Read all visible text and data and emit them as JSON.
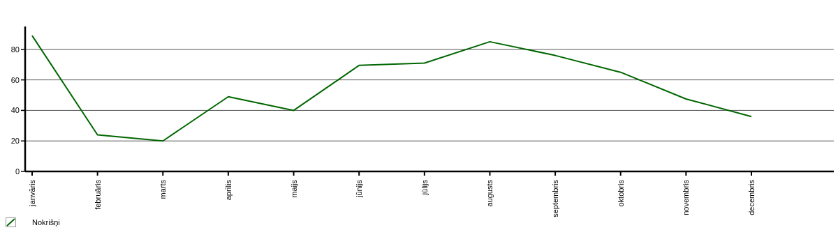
{
  "chart_data": {
    "type": "line",
    "categories": [
      "janvāris",
      "februāris",
      "marts",
      "aprīlis",
      "maijs",
      "jūnijs",
      "jūlijs",
      "augusts",
      "septembris",
      "oktobris",
      "novembris",
      "decembris"
    ],
    "series": [
      {
        "name": "Nokrišņi",
        "color": "#006600",
        "values": [
          89,
          24,
          20,
          49,
          40,
          69.5,
          71,
          85,
          76,
          65,
          47.5,
          36
        ]
      }
    ],
    "ylim": [
      0,
      95
    ],
    "yticks": [
      0,
      20,
      40,
      60,
      80
    ],
    "grid": "y",
    "legend": "bottom left",
    "marker": "none",
    "line_style": "solid"
  }
}
